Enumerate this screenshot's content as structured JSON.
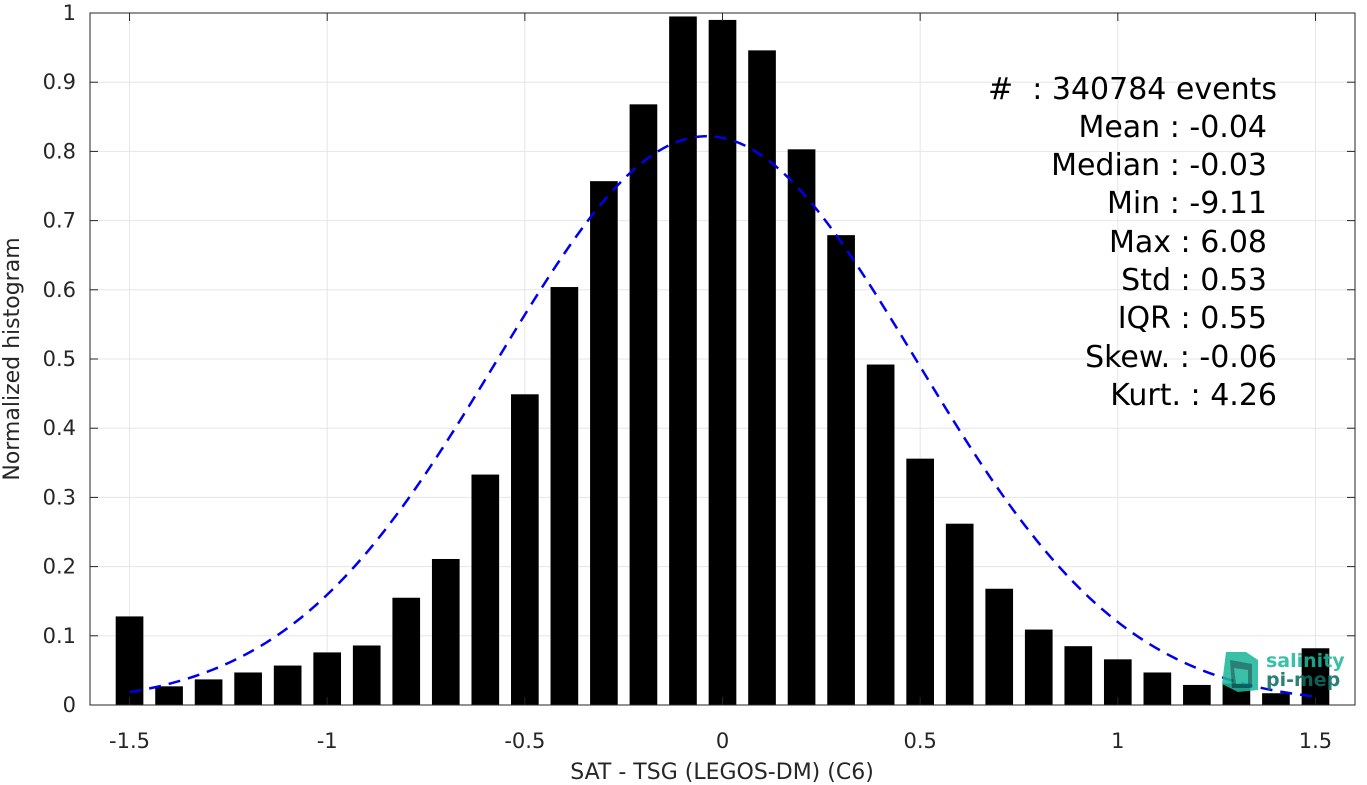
{
  "chart_data": {
    "type": "bar",
    "xlabel": "SAT - TSG (LEGOS-DM) (C6)",
    "ylabel": "Normalized histogram",
    "xlim": [
      -1.6,
      1.6
    ],
    "ylim": [
      0,
      1
    ],
    "grid": true,
    "x_ticks": [
      -1.5,
      -1,
      -0.5,
      0,
      0.5,
      1,
      1.5
    ],
    "x_tick_labels": [
      "-1.5",
      "-1",
      "-0.5",
      "0",
      "0.5",
      "1",
      "1.5"
    ],
    "y_ticks": [
      0,
      0.1,
      0.2,
      0.3,
      0.4,
      0.5,
      0.6,
      0.7,
      0.8,
      0.9,
      1
    ],
    "y_tick_labels": [
      "0",
      "0.1",
      "0.2",
      "0.3",
      "0.4",
      "0.5",
      "0.6",
      "0.7",
      "0.8",
      "0.9",
      "1"
    ],
    "bar_width": 0.07,
    "bar_color": "#000000",
    "x": [
      -1.5,
      -1.4,
      -1.3,
      -1.2,
      -1.1,
      -1.0,
      -0.9,
      -0.8,
      -0.7,
      -0.6,
      -0.5,
      -0.4,
      -0.3,
      -0.2,
      -0.1,
      0.0,
      0.1,
      0.2,
      0.3,
      0.4,
      0.5,
      0.6,
      0.7,
      0.8,
      0.9,
      1.0,
      1.1,
      1.2,
      1.3,
      1.4,
      1.5
    ],
    "values": [
      0.128,
      0.027,
      0.037,
      0.047,
      0.057,
      0.076,
      0.086,
      0.155,
      0.211,
      0.333,
      0.449,
      0.604,
      0.757,
      0.868,
      0.995,
      0.99,
      0.946,
      0.803,
      0.679,
      0.492,
      0.356,
      0.262,
      0.168,
      0.109,
      0.085,
      0.066,
      0.047,
      0.029,
      0.031,
      0.017,
      0.082
    ],
    "fit_curve": {
      "type": "gaussian",
      "color": "#0000ee",
      "style": "dashed",
      "mean": -0.04,
      "std": 0.53,
      "peak": 0.822,
      "x_range": [
        -1.5,
        1.5
      ]
    }
  },
  "stats": {
    "lines": [
      "#  : 340784 events",
      "Mean : -0.04",
      "Median : -0.03",
      "Min : -9.11",
      "Max : 6.08",
      "Std : 0.53",
      "IQR : 0.55",
      "Skew. : -0.06",
      "Kurt. : 4.26"
    ]
  },
  "logo": {
    "line1": "salinity",
    "line2": "pi-mep",
    "icon": "pi-mep-logo-icon",
    "color1": "#1fb89a",
    "color2": "#0e6e63"
  }
}
